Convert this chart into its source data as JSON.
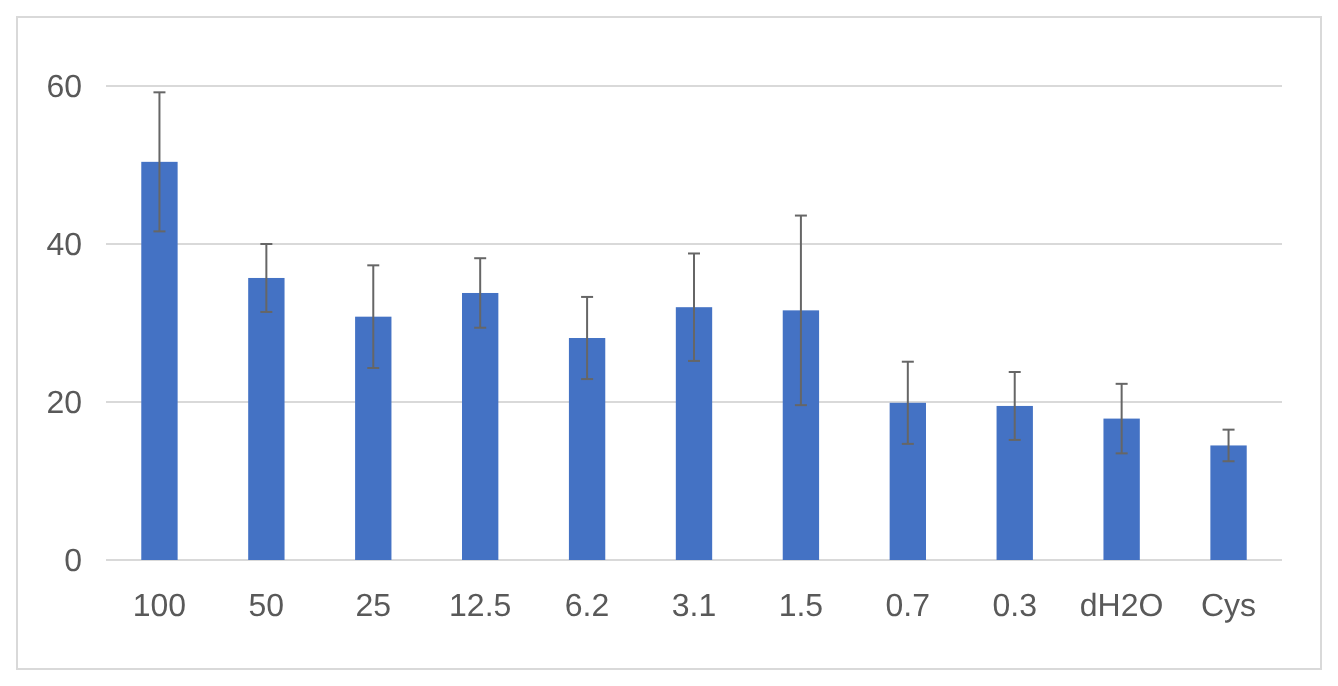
{
  "chart_data": {
    "type": "bar",
    "categories": [
      "100",
      "50",
      "25",
      "12.5",
      "6.2",
      "3.1",
      "1.5",
      "0.7",
      "0.3",
      "dH2O",
      "Cys"
    ],
    "values": [
      50.4,
      35.7,
      30.8,
      33.8,
      28.1,
      32,
      31.6,
      19.9,
      19.5,
      17.9,
      14.5
    ],
    "errors": [
      8.8,
      4.3,
      6.5,
      4.4,
      5.2,
      6.8,
      12,
      5.2,
      4.3,
      4.4,
      2
    ],
    "color": "#4472c4",
    "ylim": [
      0,
      60
    ],
    "yticks": [
      0,
      20,
      40,
      60
    ],
    "grid": "y"
  }
}
